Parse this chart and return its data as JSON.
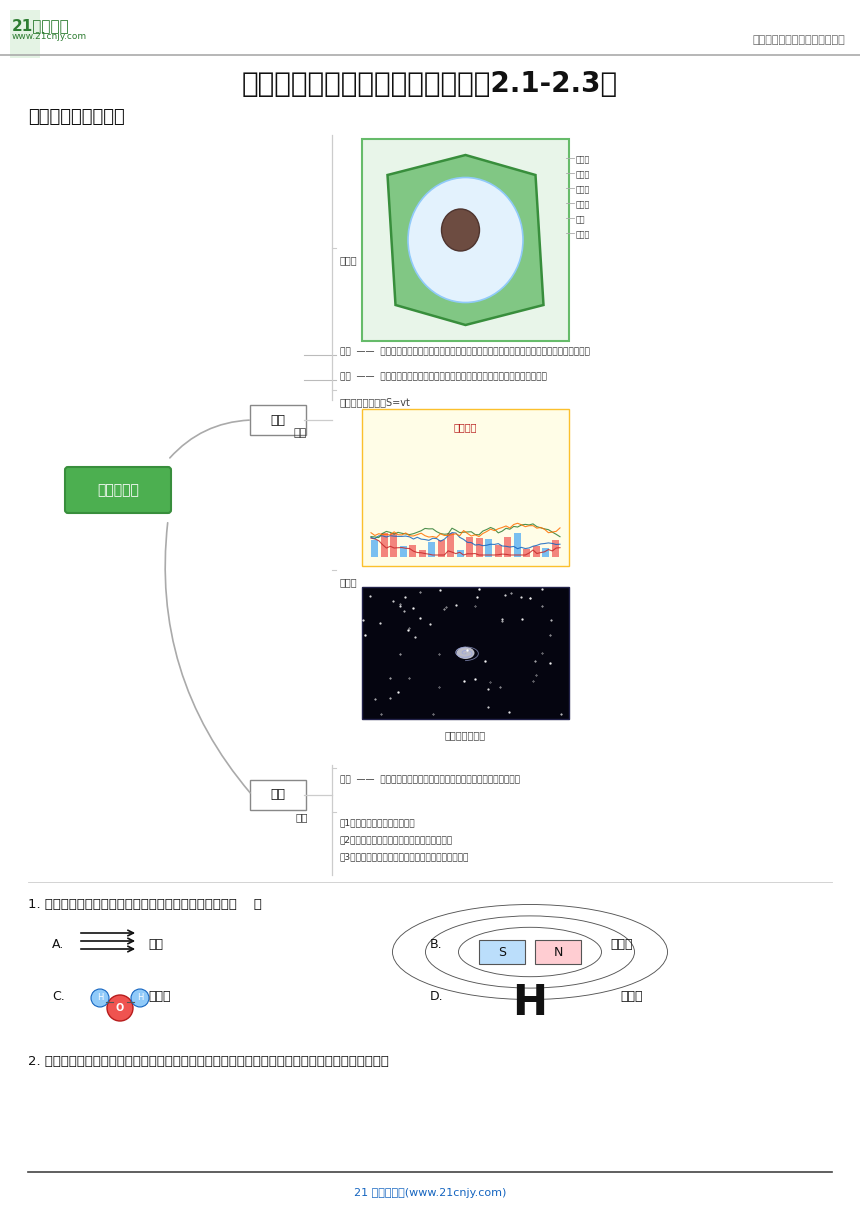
{
  "title": "浙教版八下科学第五周周末专题（2.1-2.3）",
  "header_right": "中小学教育资源及组卷应用平台",
  "section1": "一、区分符号与模型",
  "logo_text": "21世纪教育",
  "logo_url": "www.21cnjy.com",
  "footer": "21 世纪教育网(www.21cnjy.com)",
  "mind_map": {
    "center_label": "模型与符号",
    "center_color": "#4CAF50",
    "branch1_label": "模型",
    "branch2_label": "符号",
    "model_concept": "模型是依照实物的形状和结构按比例制成的物品，是用来显示复杂事物或过程的表现手段",
    "model_effect": "模型常常可以帮助人们认识和理解一些不能直接观察到的或复杂的事物",
    "type_label": "类型",
    "type_items": [
      "一幅图",
      "一个数学公式，如S=vt",
      "一个表",
      "复杂的对象示意"
    ],
    "symbol_concept": "用来表达某种意义的字母或图形，具有某种约定俗成的意义",
    "symbol_effect_items": [
      "（1）能简单明了地表示事物；",
      "（2）可避免由于事物外形不同而引起的混乱；",
      "（3）可避免由于表达的文字语言不同而引起的混乱。"
    ]
  },
  "q1_text": "1. 模型法是学习科学的重要方法。下列不属于模型的是（    ）",
  "q1_A_text": "光线",
  "q1_B_text": "磁感线",
  "q1_C_text": "水分子",
  "q1_D_text": "氢元素",
  "q2_text": "2. 模型常常可以帮助人们认识和理解一些不能直接观察到的或复杂的事物，仔细观察下列四幅图片，",
  "bg_color": "#ffffff",
  "title_fontsize": 20,
  "section_fontsize": 13
}
